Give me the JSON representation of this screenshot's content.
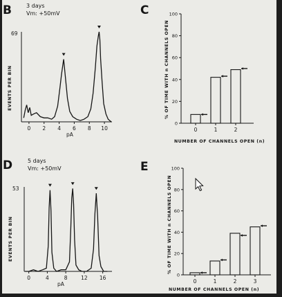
{
  "panels": {
    "B": {
      "letter": "B",
      "note_line1": "3 days",
      "note_line2": "Vm: +50mV",
      "ylabel": "EVENTS PER BIN",
      "y_max_label": "69",
      "xlabel": "pA",
      "x_ticks": [
        "0",
        "2",
        "4",
        "6",
        "8",
        "10"
      ]
    },
    "C": {
      "letter": "C",
      "ylabel": "% OF TIME WITH n CHANNELS OPEN",
      "xlabel": "NUMBER OF CHANNELS OPEN (n)",
      "y_ticks": [
        "0",
        "20",
        "40",
        "60",
        "80",
        "100"
      ],
      "x_ticks": [
        "0",
        "1",
        "2"
      ]
    },
    "D": {
      "letter": "D",
      "note_line1": "5 days",
      "note_line2": "Vm: +50mV",
      "ylabel": "EVENTS PER BIN",
      "y_max_label": "53",
      "xlabel": "pA",
      "x_ticks": [
        "0",
        "4",
        "8",
        "12",
        "16"
      ]
    },
    "E": {
      "letter": "E",
      "ylabel": "% OF TIME WITH n CHANNELS OPEN",
      "xlabel": "NUMBER OF CHANNELS OPEN (n)",
      "y_ticks": [
        "0",
        "20",
        "40",
        "60",
        "80",
        "100"
      ],
      "x_ticks": [
        "0",
        "1",
        "2",
        "3"
      ]
    }
  },
  "colors": {
    "ink": "#151515",
    "paper": "#ebebe7",
    "frame": "#1d1d1d"
  },
  "icons": {
    "cursor": "mouse-pointer-icon",
    "peak_marker": "triangle-down-icon",
    "predicted_value_marker": "left-arrow-icon"
  },
  "chart_data": [
    {
      "id": "B",
      "type": "line",
      "xlabel": "pA",
      "ylabel": "EVENTS PER BIN",
      "xlim": [
        -1,
        11
      ],
      "ylim": [
        0,
        69
      ],
      "x_ticks": [
        0,
        2,
        4,
        6,
        8,
        10
      ],
      "peaks_marked_at_pA": [
        4.6,
        9.3
      ],
      "x": [
        -0.7,
        -0.5,
        -0.3,
        -0.1,
        0.1,
        0.3,
        0.6,
        1.0,
        1.5,
        2.0,
        2.5,
        3.0,
        3.4,
        3.8,
        4.1,
        4.3,
        4.5,
        4.6,
        4.7,
        4.9,
        5.1,
        5.4,
        5.8,
        6.3,
        6.8,
        7.3,
        7.8,
        8.2,
        8.5,
        8.8,
        9.0,
        9.2,
        9.3,
        9.4,
        9.5,
        9.7,
        9.9,
        10.2,
        10.5,
        10.9
      ],
      "values": [
        3,
        9,
        13,
        7,
        11,
        5,
        6,
        7,
        4,
        3,
        3,
        2,
        4,
        12,
        26,
        36,
        44,
        48,
        42,
        30,
        18,
        8,
        4,
        2,
        1,
        2,
        4,
        10,
        22,
        42,
        58,
        66,
        69,
        63,
        48,
        30,
        14,
        6,
        2,
        0
      ]
    },
    {
      "id": "C",
      "type": "bar",
      "categories": [
        "0",
        "1",
        "2"
      ],
      "values": [
        8,
        42,
        49
      ],
      "predicted_values": [
        8,
        43,
        50
      ],
      "xlabel": "NUMBER OF CHANNELS OPEN (n)",
      "ylabel": "% OF TIME WITH n CHANNELS OPEN",
      "ylim": [
        0,
        100
      ],
      "y_ticks": [
        0,
        20,
        40,
        60,
        80,
        100
      ]
    },
    {
      "id": "D",
      "type": "line",
      "xlabel": "pA",
      "ylabel": "EVENTS PER BIN",
      "xlim": [
        -1,
        18
      ],
      "ylim": [
        0,
        53
      ],
      "x_ticks": [
        0,
        4,
        8,
        12,
        16
      ],
      "peaks_marked_at_pA": [
        4.6,
        9.5,
        14.6
      ],
      "x": [
        -0.8,
        0.0,
        1.0,
        2.0,
        3.0,
        3.8,
        4.2,
        4.4,
        4.6,
        4.8,
        5.0,
        5.4,
        6.0,
        7.0,
        8.0,
        8.8,
        9.1,
        9.3,
        9.5,
        9.7,
        9.9,
        10.2,
        10.8,
        11.5,
        12.5,
        13.5,
        14.0,
        14.3,
        14.6,
        14.9,
        15.2,
        15.6,
        16.2,
        17.0
      ],
      "values": [
        0,
        0,
        1,
        0,
        1,
        2,
        16,
        40,
        51,
        38,
        12,
        2,
        0,
        1,
        1,
        6,
        28,
        46,
        52,
        42,
        20,
        4,
        1,
        0,
        0,
        2,
        14,
        36,
        49,
        34,
        10,
        3,
        0,
        0
      ]
    },
    {
      "id": "E",
      "type": "bar",
      "categories": [
        "0",
        "1",
        "2",
        "3"
      ],
      "values": [
        2,
        13,
        39,
        45
      ],
      "predicted_values": [
        2,
        14,
        37,
        46
      ],
      "xlabel": "NUMBER OF CHANNELS OPEN (n)",
      "ylabel": "% OF TIME WITH n CHANNELS OPEN",
      "ylim": [
        0,
        100
      ],
      "y_ticks": [
        0,
        20,
        40,
        60,
        80,
        100
      ]
    }
  ]
}
